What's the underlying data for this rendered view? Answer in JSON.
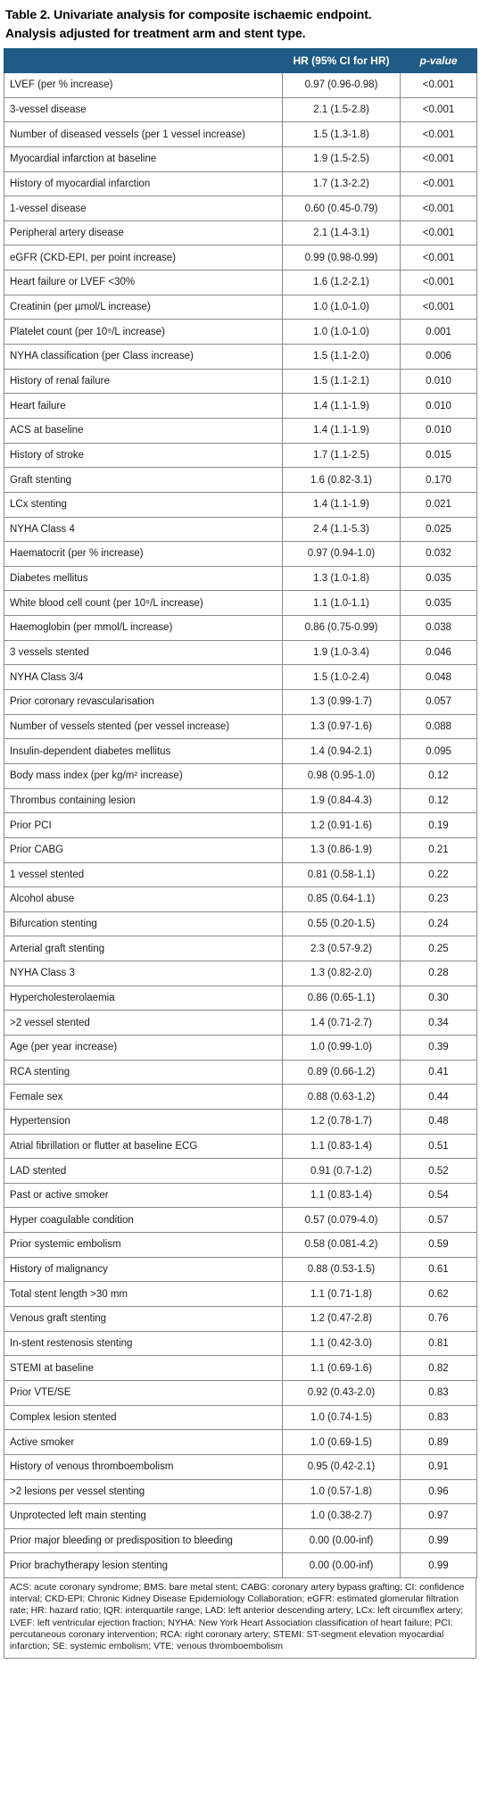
{
  "title_line1": "Table 2. Univariate analysis for composite ischaemic endpoint.",
  "title_line2": "Analysis adjusted for treatment arm and stent type.",
  "headers": {
    "variable": "",
    "hr": "HR (95% CI for HR)",
    "pvalue": "p-value"
  },
  "rows": [
    {
      "variable": "LVEF (per % increase)",
      "hr": "0.97 (0.96-0.98)",
      "p": "<0.001"
    },
    {
      "variable": "3-vessel disease",
      "hr": "2.1 (1.5-2.8)",
      "p": "<0.001"
    },
    {
      "variable": "Number of diseased vessels (per 1 vessel increase)",
      "hr": "1.5 (1.3-1.8)",
      "p": "<0.001"
    },
    {
      "variable": "Myocardial infarction at baseline",
      "hr": "1.9 (1.5-2.5)",
      "p": "<0.001"
    },
    {
      "variable": "History of myocardial infarction",
      "hr": "1.7 (1.3-2.2)",
      "p": "<0.001"
    },
    {
      "variable": "1-vessel disease",
      "hr": "0.60 (0.45-0.79)",
      "p": "<0.001"
    },
    {
      "variable": "Peripheral artery disease",
      "hr": "2.1 (1.4-3.1)",
      "p": "<0.001"
    },
    {
      "variable": "eGFR (CKD-EPI, per point increase)",
      "hr": "0.99 (0.98-0.99)",
      "p": "<0.001"
    },
    {
      "variable": "Heart failure or LVEF <30%",
      "hr": "1.6 (1.2-2.1)",
      "p": "<0.001"
    },
    {
      "variable": "Creatinin (per µmol/L increase)",
      "hr": "1.0 (1.0-1.0)",
      "p": "<0.001"
    },
    {
      "variable": "Platelet count (per 10⁹/L increase)",
      "hr": "1.0 (1.0-1.0)",
      "p": "0.001"
    },
    {
      "variable": "NYHA classification (per Class increase)",
      "hr": "1.5 (1.1-2.0)",
      "p": "0.006"
    },
    {
      "variable": "History of renal failure",
      "hr": "1.5 (1.1-2.1)",
      "p": "0.010"
    },
    {
      "variable": "Heart failure",
      "hr": "1.4 (1.1-1.9)",
      "p": "0.010"
    },
    {
      "variable": "ACS at baseline",
      "hr": "1.4 (1.1-1.9)",
      "p": "0.010"
    },
    {
      "variable": "History of stroke",
      "hr": "1.7 (1.1-2.5)",
      "p": "0.015"
    },
    {
      "variable": "Graft stenting",
      "hr": "1.6 (0.82-3.1)",
      "p": "0.170"
    },
    {
      "variable": "LCx stenting",
      "hr": "1.4 (1.1-1.9)",
      "p": "0.021"
    },
    {
      "variable": "NYHA Class 4",
      "hr": "2.4 (1.1-5.3)",
      "p": "0.025"
    },
    {
      "variable": "Haematocrit (per % increase)",
      "hr": "0.97 (0.94-1.0)",
      "p": "0.032"
    },
    {
      "variable": "Diabetes mellitus",
      "hr": "1.3 (1.0-1.8)",
      "p": "0.035"
    },
    {
      "variable": "White blood cell count (per 10⁹/L increase)",
      "hr": "1.1 (1.0-1.1)",
      "p": "0.035"
    },
    {
      "variable": "Haemoglobin (per mmol/L increase)",
      "hr": "0.86 (0.75-0.99)",
      "p": "0.038"
    },
    {
      "variable": "3 vessels stented",
      "hr": "1.9 (1.0-3.4)",
      "p": "0.046"
    },
    {
      "variable": "NYHA Class 3/4",
      "hr": "1.5 (1.0-2.4)",
      "p": "0.048"
    },
    {
      "variable": "Prior coronary revascularisation",
      "hr": "1.3 (0.99-1.7)",
      "p": "0.057"
    },
    {
      "variable": "Number of vessels stented (per vessel increase)",
      "hr": "1.3 (0.97-1.6)",
      "p": "0.088"
    },
    {
      "variable": "Insulin-dependent diabetes mellitus",
      "hr": "1.4 (0.94-2.1)",
      "p": "0.095"
    },
    {
      "variable": "Body mass index (per kg/m² increase)",
      "hr": "0.98 (0.95-1.0)",
      "p": "0.12"
    },
    {
      "variable": "Thrombus containing lesion",
      "hr": "1.9 (0.84-4.3)",
      "p": "0.12"
    },
    {
      "variable": "Prior PCI",
      "hr": "1.2 (0.91-1.6)",
      "p": "0.19"
    },
    {
      "variable": "Prior CABG",
      "hr": "1.3 (0.86-1.9)",
      "p": "0.21"
    },
    {
      "variable": "1 vessel stented",
      "hr": "0.81 (0.58-1.1)",
      "p": "0.22"
    },
    {
      "variable": "Alcohol abuse",
      "hr": "0.85 (0.64-1.1)",
      "p": "0.23"
    },
    {
      "variable": "Bifurcation stenting",
      "hr": "0.55 (0.20-1.5)",
      "p": "0.24"
    },
    {
      "variable": "Arterial graft stenting",
      "hr": "2.3 (0.57-9.2)",
      "p": "0.25"
    },
    {
      "variable": "NYHA Class 3",
      "hr": "1.3 (0.82-2.0)",
      "p": "0.28"
    },
    {
      "variable": "Hypercholesterolaemia",
      "hr": "0.86 (0.65-1.1)",
      "p": "0.30"
    },
    {
      "variable": ">2 vessel stented",
      "hr": "1.4 (0.71-2.7)",
      "p": "0.34"
    },
    {
      "variable": "Age (per year increase)",
      "hr": "1.0 (0.99-1.0)",
      "p": "0.39"
    },
    {
      "variable": "RCA stenting",
      "hr": "0.89 (0.66-1.2)",
      "p": "0.41"
    },
    {
      "variable": "Female sex",
      "hr": "0.88 (0.63-1.2)",
      "p": "0.44"
    },
    {
      "variable": "Hypertension",
      "hr": "1.2 (0.78-1.7)",
      "p": "0.48"
    },
    {
      "variable": "Atrial fibrillation or flutter at baseline ECG",
      "hr": "1.1 (0.83-1.4)",
      "p": "0.51"
    },
    {
      "variable": "LAD stented",
      "hr": "0.91 (0.7-1.2)",
      "p": "0.52"
    },
    {
      "variable": "Past or active smoker",
      "hr": "1.1 (0.83-1.4)",
      "p": "0.54"
    },
    {
      "variable": "Hyper coagulable condition",
      "hr": "0.57 (0.079-4.0)",
      "p": "0.57"
    },
    {
      "variable": "Prior systemic embolism",
      "hr": "0.58 (0.081-4.2)",
      "p": "0.59"
    },
    {
      "variable": "History of malignancy",
      "hr": "0.88 (0.53-1.5)",
      "p": "0.61"
    },
    {
      "variable": "Total stent length >30 mm",
      "hr": "1.1 (0.71-1.8)",
      "p": "0.62"
    },
    {
      "variable": "Venous graft stenting",
      "hr": "1.2 (0.47-2.8)",
      "p": "0.76"
    },
    {
      "variable": "In-stent restenosis stenting",
      "hr": "1.1 (0.42-3.0)",
      "p": "0.81"
    },
    {
      "variable": "STEMI at baseline",
      "hr": "1.1 (0.69-1.6)",
      "p": "0.82"
    },
    {
      "variable": "Prior VTE/SE",
      "hr": "0.92 (0.43-2.0)",
      "p": "0.83"
    },
    {
      "variable": "Complex lesion stented",
      "hr": "1.0 (0.74-1.5)",
      "p": "0.83"
    },
    {
      "variable": "Active smoker",
      "hr": "1.0 (0.69-1.5)",
      "p": "0.89"
    },
    {
      "variable": "History of venous thromboembolism",
      "hr": "0.95 (0.42-2.1)",
      "p": "0.91"
    },
    {
      "variable": ">2 lesions per vessel stenting",
      "hr": "1.0 (0.57-1.8)",
      "p": "0.96"
    },
    {
      "variable": "Unprotected left main stenting",
      "hr": "1.0 (0.38-2.7)",
      "p": "0.97"
    },
    {
      "variable": "Prior major bleeding or predisposition to bleeding",
      "hr": "0.00 (0.00-inf)",
      "p": "0.99"
    },
    {
      "variable": "Prior brachytherapy lesion stenting",
      "hr": "0.00 (0.00-inf)",
      "p": "0.99"
    }
  ],
  "footnote": "ACS: acute coronary syndrome; BMS: bare metal stent; CABG: coronary artery bypass grafting; CI: confidence interval; CKD-EPI: Chronic Kidney Disease Epidemiology Collaboration; eGFR: estimated glomerular filtration rate; HR: hazard ratio; IQR: interquartile range; LAD: left anterior descending artery; LCx: left circumflex artery; LVEF: left ventricular ejection fraction; NYHA: New York Heart Association classification of heart failure; PCI: percutaneous coronary intervention; RCA: right coronary artery; STEMI: ST-segment elevation myocardial infarction; SE: systemic embolism; VTE: venous thromboembolism",
  "colors": {
    "header_bg": "#1f5b84",
    "header_text": "#ffffff",
    "border": "#8a8a8a"
  }
}
